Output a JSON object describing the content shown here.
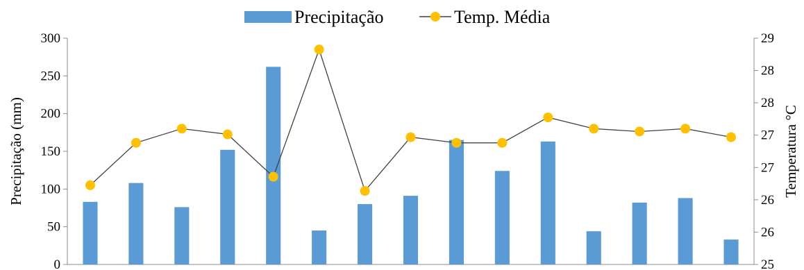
{
  "chart_data": {
    "type": "bar",
    "legend": {
      "placement": "top-center",
      "items": [
        {
          "label": "Precipitação",
          "kind": "bar"
        },
        {
          "label": "Temp. Média",
          "kind": "line"
        }
      ]
    },
    "ylabel": "Precipitação (mm)",
    "y2label": "Temperatura °C",
    "ylim": [
      0,
      300
    ],
    "y2lim": [
      25,
      29
    ],
    "yticks": [
      "0",
      "50",
      "100",
      "150",
      "200",
      "250",
      "300"
    ],
    "y2ticks": [
      "25",
      "26",
      "26",
      "27",
      "27",
      "28",
      "28",
      "29"
    ],
    "grid": false,
    "colors": {
      "bar": "#5b9bd5",
      "line": "#404040",
      "marker": "#ffc000"
    },
    "series": [
      {
        "name": "Precipitação",
        "type": "bar",
        "axis": "left",
        "values": [
          83,
          108,
          76,
          152,
          262,
          45,
          80,
          91,
          165,
          124,
          163,
          44,
          82,
          88,
          33
        ]
      },
      {
        "name": "Temp. Média",
        "type": "line",
        "axis": "right",
        "values": [
          26.4,
          27.15,
          27.4,
          27.3,
          26.55,
          28.8,
          26.3,
          27.25,
          27.15,
          27.15,
          27.6,
          27.4,
          27.35,
          27.4,
          27.25
        ]
      }
    ]
  }
}
